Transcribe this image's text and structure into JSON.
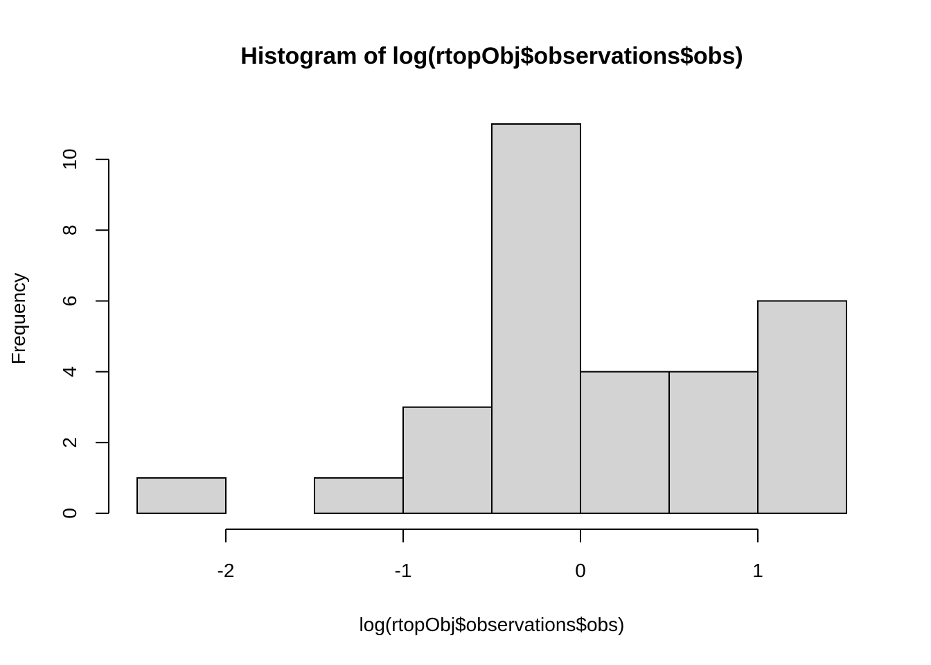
{
  "chart_data": {
    "type": "bar",
    "title": "Histogram of log(rtopObj$observations$obs)",
    "xlabel": "log(rtopObj$observations$obs)",
    "ylabel": "Frequency",
    "bins": [
      {
        "x0": -2.5,
        "x1": -2.0,
        "count": 1
      },
      {
        "x0": -2.0,
        "x1": -1.5,
        "count": 0
      },
      {
        "x0": -1.5,
        "x1": -1.0,
        "count": 1
      },
      {
        "x0": -1.0,
        "x1": -0.5,
        "count": 3
      },
      {
        "x0": -0.5,
        "x1": 0.0,
        "count": 11
      },
      {
        "x0": 0.0,
        "x1": 0.5,
        "count": 4
      },
      {
        "x0": 0.5,
        "x1": 1.0,
        "count": 4
      },
      {
        "x0": 1.0,
        "x1": 1.5,
        "count": 6
      }
    ],
    "xticks": [
      -2,
      -1,
      0,
      1
    ],
    "xtick_labels": [
      "-2",
      "-1",
      "0",
      "1"
    ],
    "yticks": [
      0,
      2,
      4,
      6,
      8,
      10
    ],
    "ytick_labels": [
      "0",
      "2",
      "4",
      "6",
      "8",
      "10"
    ],
    "xlim": [
      -2.5,
      1.5
    ],
    "ylim": [
      0,
      11
    ],
    "bar_color": "#d3d3d3",
    "grid": false
  }
}
